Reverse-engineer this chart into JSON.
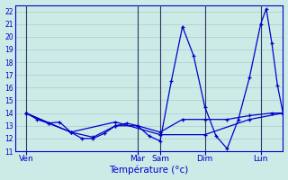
{
  "xlabel": "Température (°c)",
  "bg_color": "#cceae6",
  "grid_color": "#aacccc",
  "line_color": "#0000cc",
  "vline_color": "#333366",
  "ylim": [
    11,
    22.5
  ],
  "ytick_min": 11,
  "ytick_max": 22,
  "xlim": [
    0,
    96
  ],
  "day_labels": [
    "Ven",
    "Mar",
    "Sam",
    "Dim",
    "Lun"
  ],
  "day_tick_positions": [
    4,
    44,
    52,
    68,
    88
  ],
  "day_vline_positions": [
    4,
    44,
    52,
    68,
    88
  ],
  "series1": [
    [
      4,
      14.0
    ],
    [
      8,
      13.5
    ],
    [
      12,
      13.2
    ],
    [
      16,
      13.3
    ],
    [
      20,
      12.5
    ],
    [
      24,
      12.0
    ],
    [
      28,
      12.0
    ],
    [
      32,
      12.4
    ],
    [
      36,
      13.0
    ],
    [
      40,
      13.2
    ],
    [
      44,
      13.0
    ],
    [
      48,
      12.2
    ],
    [
      52,
      11.8
    ],
    [
      56,
      16.5
    ],
    [
      60,
      20.8
    ],
    [
      64,
      18.5
    ],
    [
      68,
      14.5
    ],
    [
      72,
      12.2
    ],
    [
      76,
      11.2
    ],
    [
      80,
      13.5
    ],
    [
      84,
      16.8
    ],
    [
      88,
      21.0
    ],
    [
      90,
      22.2
    ],
    [
      92,
      19.5
    ],
    [
      94,
      16.2
    ],
    [
      96,
      14.0
    ]
  ],
  "series2": [
    [
      4,
      14.0
    ],
    [
      12,
      13.2
    ],
    [
      20,
      12.5
    ],
    [
      28,
      12.1
    ],
    [
      36,
      13.0
    ],
    [
      44,
      13.0
    ],
    [
      52,
      12.5
    ],
    [
      60,
      13.5
    ],
    [
      68,
      13.5
    ],
    [
      76,
      13.5
    ],
    [
      84,
      13.8
    ],
    [
      92,
      14.0
    ],
    [
      96,
      14.0
    ]
  ],
  "series3": [
    [
      4,
      14.0
    ],
    [
      20,
      12.5
    ],
    [
      36,
      13.3
    ],
    [
      52,
      12.3
    ],
    [
      68,
      12.3
    ],
    [
      84,
      13.5
    ],
    [
      96,
      14.0
    ]
  ]
}
